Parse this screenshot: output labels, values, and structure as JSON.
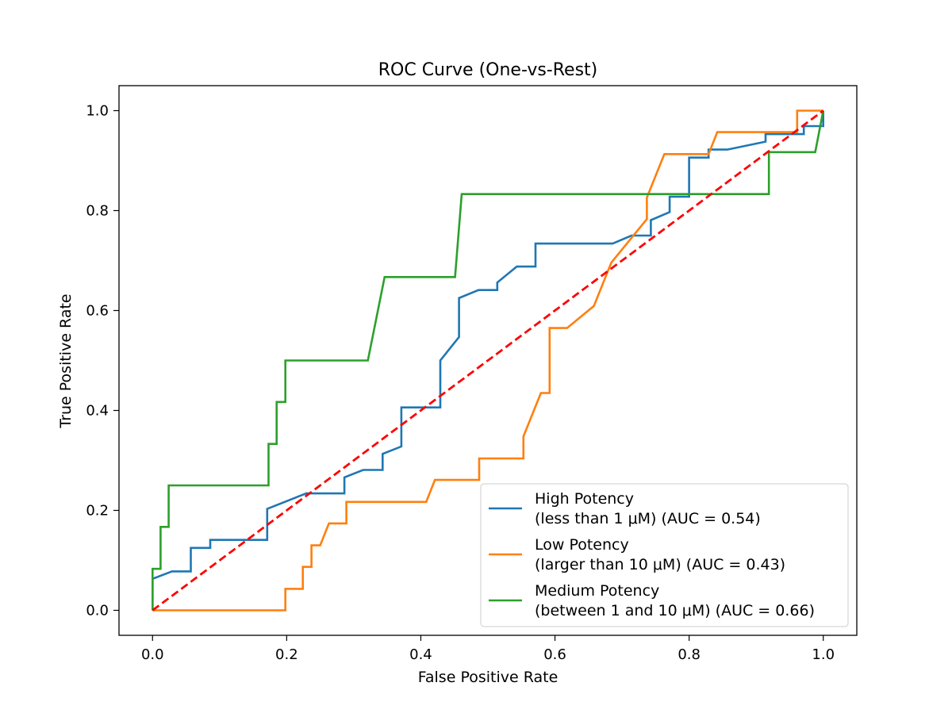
{
  "chart_data": {
    "type": "line",
    "title": "ROC Curve (One-vs-Rest)",
    "xlabel": "False Positive Rate",
    "ylabel": "True Positive Rate",
    "xlim": [
      -0.05,
      1.05
    ],
    "ylim": [
      -0.05,
      1.05
    ],
    "xticks": [
      0.0,
      0.2,
      0.4,
      0.6,
      0.8,
      1.0
    ],
    "yticks": [
      0.0,
      0.2,
      0.4,
      0.6,
      0.8,
      1.0
    ],
    "xtick_labels": [
      "0.0",
      "0.2",
      "0.4",
      "0.6",
      "0.8",
      "1.0"
    ],
    "ytick_labels": [
      "0.0",
      "0.2",
      "0.4",
      "0.6",
      "0.8",
      "1.0"
    ],
    "grid": false,
    "legend_position": "lower-right",
    "series": [
      {
        "name": "High Potency",
        "legend_line1": "High Potency",
        "legend_line2": "(less than 1 μM) (AUC = 0.54)",
        "color": "#1f77b4",
        "x": [
          0,
          0,
          0.029,
          0.029,
          0.057,
          0.057,
          0.086,
          0.086,
          0.171,
          0.171,
          0.229,
          0.229,
          0.286,
          0.286,
          0.314,
          0.314,
          0.343,
          0.343,
          0.371,
          0.371,
          0.429,
          0.429,
          0.457,
          0.457,
          0.486,
          0.486,
          0.514,
          0.514,
          0.543,
          0.543,
          0.571,
          0.571,
          0.686,
          0.714,
          0.743,
          0.743,
          0.771,
          0.771,
          0.8,
          0.8,
          0.829,
          0.829,
          0.857,
          0.914,
          0.914,
          0.971,
          0.971,
          1.0,
          1.0
        ],
        "y": [
          0,
          0.063,
          0.078,
          0.078,
          0.078,
          0.125,
          0.125,
          0.141,
          0.141,
          0.203,
          0.234,
          0.234,
          0.234,
          0.266,
          0.281,
          0.281,
          0.281,
          0.313,
          0.328,
          0.406,
          0.406,
          0.5,
          0.547,
          0.625,
          0.641,
          0.641,
          0.641,
          0.656,
          0.688,
          0.688,
          0.688,
          0.734,
          0.734,
          0.75,
          0.75,
          0.781,
          0.797,
          0.828,
          0.828,
          0.906,
          0.906,
          0.922,
          0.922,
          0.938,
          0.953,
          0.953,
          0.969,
          0.969,
          1.0
        ]
      },
      {
        "name": "Low Potency",
        "legend_line1": "Low Potency",
        "legend_line2": "(larger than 10 μM) (AUC = 0.43)",
        "color": "#ff7f0e",
        "x": [
          0,
          0.198,
          0.198,
          0.224,
          0.224,
          0.237,
          0.237,
          0.25,
          0.263,
          0.263,
          0.289,
          0.289,
          0.408,
          0.421,
          0.487,
          0.487,
          0.553,
          0.553,
          0.579,
          0.592,
          0.592,
          0.618,
          0.658,
          0.684,
          0.737,
          0.737,
          0.763,
          0.829,
          0.842,
          0.961,
          0.961,
          1.0
        ],
        "y": [
          0,
          0,
          0.043,
          0.043,
          0.087,
          0.087,
          0.13,
          0.13,
          0.174,
          0.174,
          0.174,
          0.217,
          0.217,
          0.261,
          0.261,
          0.304,
          0.304,
          0.348,
          0.435,
          0.435,
          0.565,
          0.565,
          0.609,
          0.696,
          0.783,
          0.826,
          0.913,
          0.913,
          0.957,
          0.957,
          1.0,
          1.0
        ]
      },
      {
        "name": "Medium Potency",
        "legend_line1": "Medium Potency",
        "legend_line2": "(between 1 and 10 μM) (AUC = 0.66)",
        "color": "#2ca02c",
        "x": [
          0,
          0,
          0.012,
          0.012,
          0.024,
          0.024,
          0.173,
          0.173,
          0.185,
          0.185,
          0.198,
          0.198,
          0.321,
          0.346,
          0.346,
          0.451,
          0.461,
          0.461,
          0.919,
          0.919,
          0.988,
          1.0
        ],
        "y": [
          0,
          0.083,
          0.083,
          0.167,
          0.167,
          0.25,
          0.25,
          0.333,
          0.333,
          0.417,
          0.417,
          0.5,
          0.5,
          0.667,
          0.667,
          0.667,
          0.833,
          0.833,
          0.833,
          0.917,
          0.917,
          1.0
        ]
      },
      {
        "name": "",
        "color": "#ff0000",
        "dashed": true,
        "x": [
          0,
          1
        ],
        "y": [
          0,
          1
        ]
      }
    ]
  }
}
